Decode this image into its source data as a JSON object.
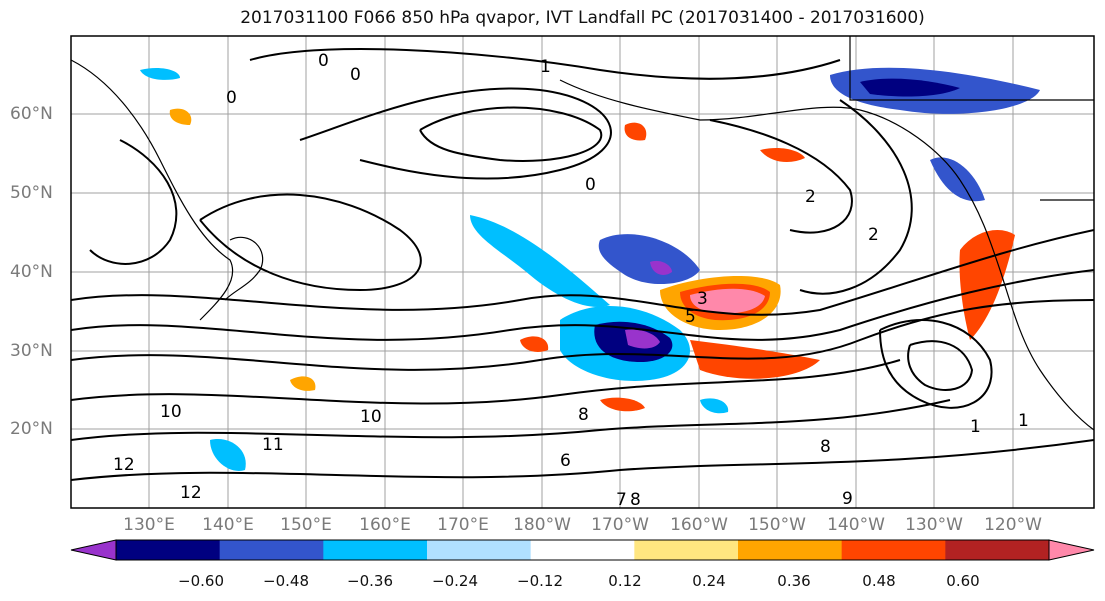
{
  "title": "2017031100 F066 850 hPa qvapor, IVT Landfall PC (2017031400 - 2017031600)",
  "lat_labels": [
    "60°N",
    "50°N",
    "40°N",
    "30°N",
    "20°N"
  ],
  "lon_labels": [
    "130°E",
    "140°E",
    "150°E",
    "160°E",
    "170°E",
    "180°W",
    "170°W",
    "160°W",
    "150°W",
    "140°W",
    "130°W",
    "120°W"
  ],
  "colorbar": {
    "ticks": [
      "−0.60",
      "−0.48",
      "−0.36",
      "−0.24",
      "−0.12",
      "0.12",
      "0.24",
      "0.36",
      "0.48",
      "0.60"
    ],
    "colors": [
      "#9933cc",
      "#000080",
      "#3355cc",
      "#00bfff",
      "#b0e0ff",
      "#ffffff",
      "#ffe680",
      "#ffa500",
      "#ff4500",
      "#b22222",
      "#ff88aa"
    ]
  },
  "contour_labels": [
    "0",
    "0",
    "0",
    "0",
    "1",
    "2",
    "2",
    "3",
    "5",
    "8",
    "9",
    "10",
    "10",
    "11",
    "12",
    "12",
    "6",
    "7",
    "8",
    "1",
    "1",
    "8"
  ]
}
